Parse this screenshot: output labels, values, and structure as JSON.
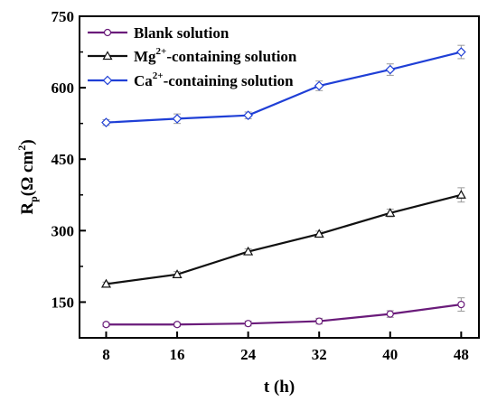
{
  "chart_data": {
    "type": "line",
    "x": [
      8,
      16,
      24,
      32,
      40,
      48
    ],
    "xticks": [
      "8",
      "16",
      "24",
      "32",
      "40",
      "48"
    ],
    "yticks": [
      "150",
      "300",
      "450",
      "600",
      "750"
    ],
    "xlabel": "t (h)",
    "ylabel": {
      "main": "R",
      "sub": "p",
      "open": "(Ω cm",
      "sup": "2",
      "close": ")"
    },
    "xlim": [
      5,
      50
    ],
    "ylim": [
      75,
      750
    ],
    "legend_position": "top-left",
    "series": [
      {
        "name": "Blank solution",
        "name_parts": {
          "pre": "Blank solution",
          "sup": "",
          "post": ""
        },
        "marker": "circle",
        "color": "#6a1b7a",
        "values": [
          103,
          103,
          105,
          110,
          125,
          145
        ],
        "errors": [
          4,
          4,
          5,
          6,
          7,
          14
        ]
      },
      {
        "name": "Mg2+-containing solution",
        "name_parts": {
          "pre": "Mg",
          "sup": "2+",
          "post": "-containing solution"
        },
        "marker": "triangle",
        "color": "#111111",
        "values": [
          188,
          208,
          256,
          293,
          337,
          375
        ],
        "errors": [
          4,
          6,
          6,
          6,
          8,
          15
        ]
      },
      {
        "name": "Ca2+-containing solution",
        "name_parts": {
          "pre": "Ca",
          "sup": "2+",
          "post": "-containing solution"
        },
        "marker": "diamond",
        "color": "#1f3fd6",
        "values": [
          527,
          535,
          542,
          604,
          638,
          675
        ],
        "errors": [
          6,
          10,
          7,
          10,
          12,
          14
        ]
      }
    ]
  }
}
